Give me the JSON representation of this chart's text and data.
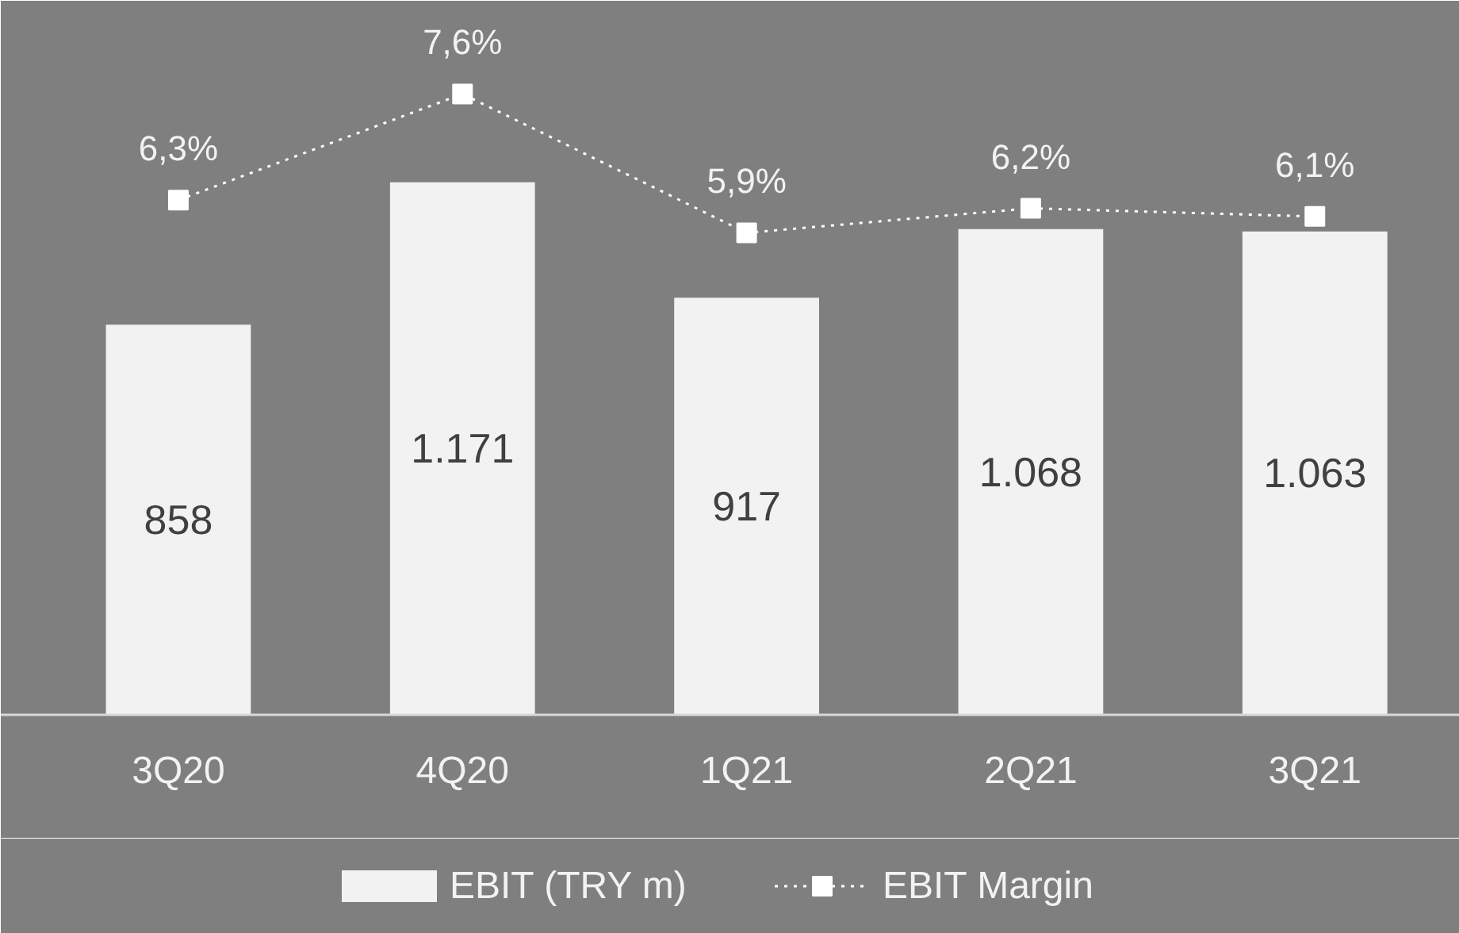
{
  "chart_data": {
    "type": "bar",
    "categories": [
      "3Q20",
      "4Q20",
      "1Q21",
      "2Q21",
      "3Q21"
    ],
    "series": [
      {
        "name": "EBIT (TRY m)",
        "color": "#f2f2f2",
        "values": [
          858,
          1171,
          917,
          1068,
          1063
        ],
        "value_labels": [
          "858",
          "1.171",
          "917",
          "1.068",
          "1.063"
        ]
      },
      {
        "name": "EBIT Margin",
        "type": "line",
        "axis": "y2",
        "color": "#ffffff",
        "line_style": "dotted",
        "marker": "square",
        "values": [
          6.3,
          7.6,
          5.9,
          6.2,
          6.1
        ],
        "value_labels": [
          "6,3%",
          "7,6%",
          "5,9%",
          "6,2%",
          "6,1%"
        ]
      }
    ],
    "ylim": [
      0,
      1570
    ],
    "y2lim": [
      0,
      8.74
    ],
    "tick_labels": "x",
    "grid": false,
    "legend": "bottom"
  }
}
